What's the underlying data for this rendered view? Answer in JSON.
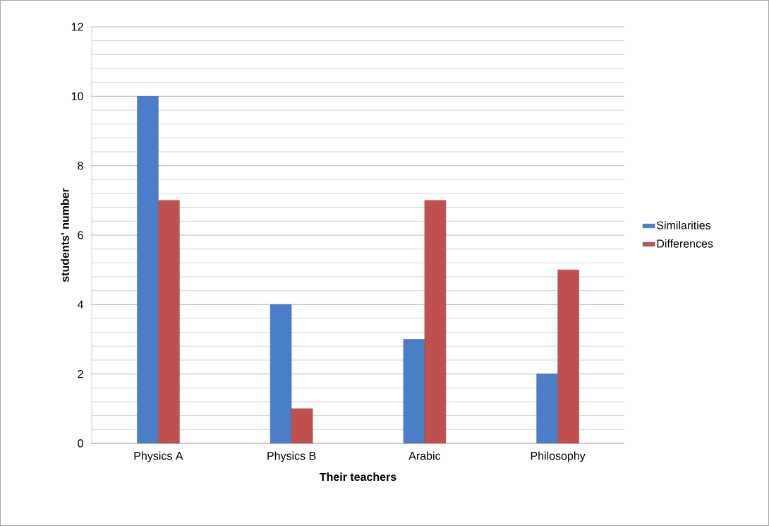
{
  "chart_data": {
    "type": "bar",
    "xlabel": "Their teachers",
    "ylabel": "students' number",
    "categories": [
      "Physics A",
      "Physics B",
      "Arabic",
      "Philosophy"
    ],
    "series": [
      {
        "name": "Similarities",
        "color": "#4a7ec8",
        "values": [
          10,
          4,
          3,
          2
        ]
      },
      {
        "name": "Differences",
        "color": "#c0504d",
        "values": [
          7,
          1,
          7,
          5
        ]
      }
    ],
    "ylim": [
      0,
      12
    ],
    "yticks": [
      0,
      2,
      4,
      6,
      8,
      10,
      12
    ],
    "grid": "y",
    "legend": "right"
  }
}
